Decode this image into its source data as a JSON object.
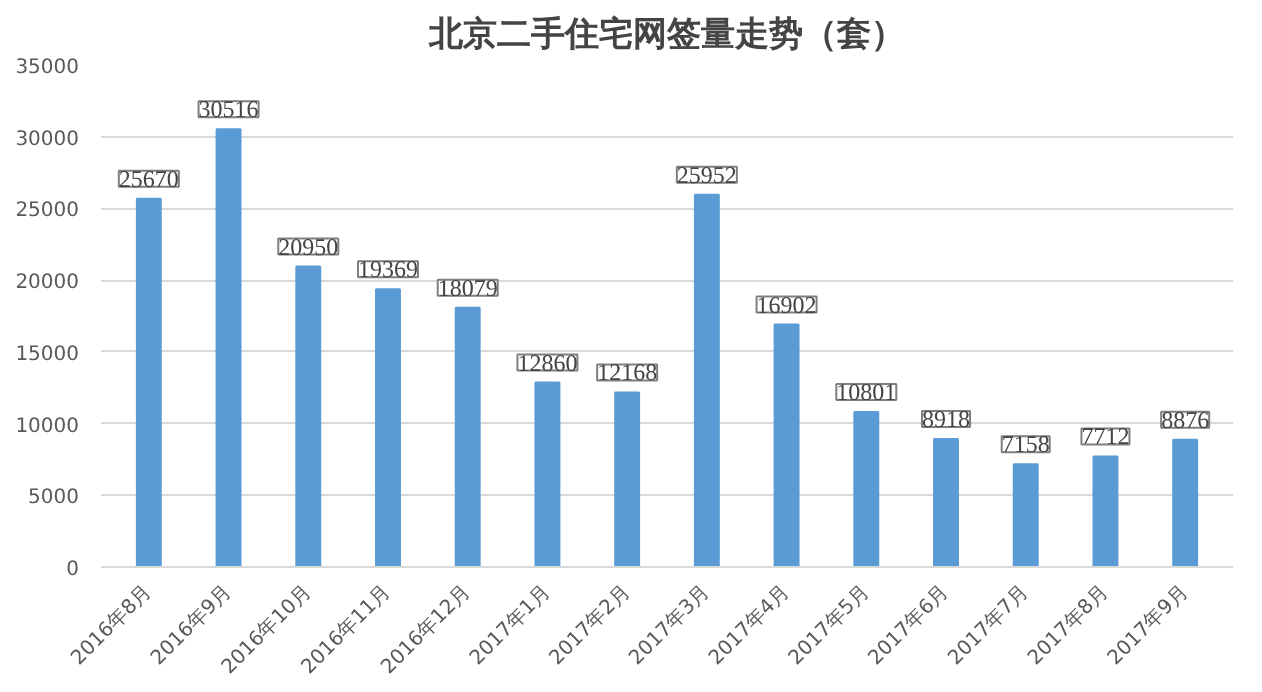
{
  "chart_data": {
    "type": "bar",
    "title": "北京二手住宅网签量走势（套）",
    "categories": [
      "2016年8月",
      "2016年9月",
      "2016年10月",
      "2016年11月",
      "2016年12月",
      "2017年1月",
      "2017年2月",
      "2017年3月",
      "2017年4月",
      "2017年5月",
      "2017年6月",
      "2017年7月",
      "2017年8月",
      "2017年9月"
    ],
    "values": [
      25670,
      30516,
      20950,
      19369,
      18079,
      12860,
      12168,
      25952,
      16902,
      10801,
      8918,
      7158,
      7712,
      8876
    ],
    "color": "#5b9bd5",
    "ylim": [
      0,
      35000
    ],
    "yticks": [
      0,
      5000,
      10000,
      15000,
      20000,
      25000,
      30000,
      35000
    ],
    "grid": "y",
    "data_labels": true
  }
}
